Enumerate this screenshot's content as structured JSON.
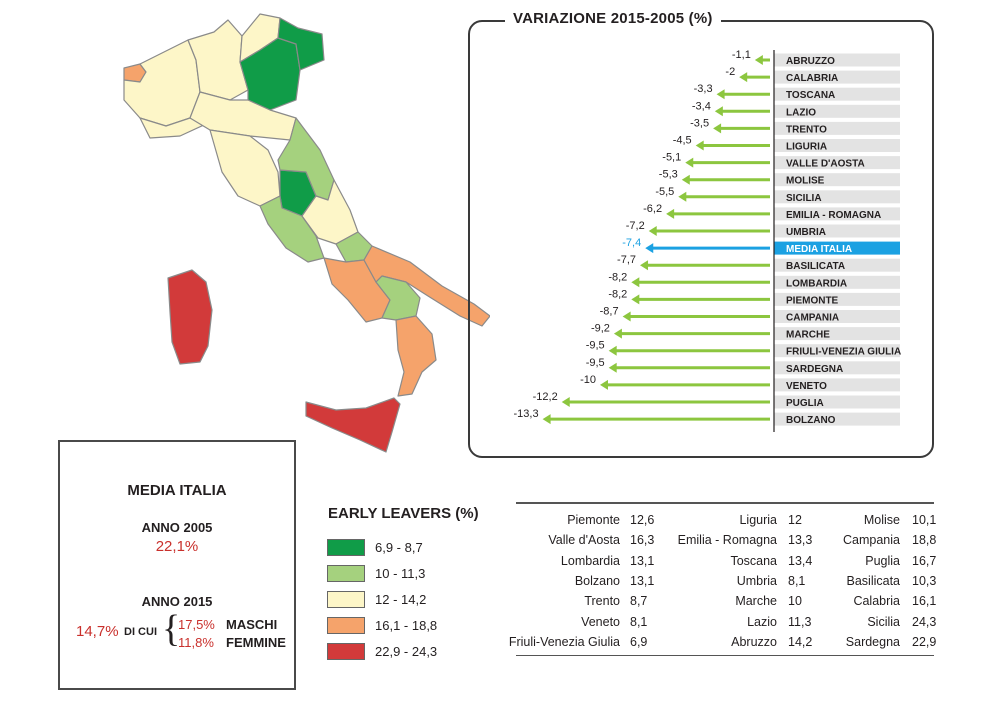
{
  "variation_panel": {
    "title": "VARIAZIONE 2015-2005 (%)"
  },
  "chart_data": [
    {
      "type": "bar",
      "orientation": "horizontal",
      "title": "VARIAZIONE 2015-2005 (%)",
      "categories": [
        "ABRUZZO",
        "CALABRIA",
        "TOSCANA",
        "LAZIO",
        "TRENTO",
        "LIGURIA",
        "VALLE D'AOSTA",
        "MOLISE",
        "SICILIA",
        "EMILIA - ROMAGNA",
        "UMBRIA",
        "MEDIA ITALIA",
        "BASILICATA",
        "LOMBARDIA",
        "PIEMONTE",
        "CAMPANIA",
        "MARCHE",
        "FRIULI-VENEZIA GIULIA",
        "SARDEGNA",
        "VENETO",
        "PUGLIA",
        "BOLZANO"
      ],
      "values": [
        -1.1,
        -2,
        -3.3,
        -3.4,
        -3.5,
        -4.5,
        -5.1,
        -5.3,
        -5.5,
        -6.2,
        -7.2,
        -7.4,
        -7.7,
        -8.2,
        -8.2,
        -8.7,
        -9.2,
        -9.5,
        -9.5,
        -10,
        -12.2,
        -13.3
      ],
      "value_labels": [
        "-1,1",
        "-2",
        "-3,3",
        "-3,4",
        "-3,5",
        "-4,5",
        "-5,1",
        "-5,3",
        "-5,5",
        "-6,2",
        "-7,2",
        "-7,4",
        "-7,7",
        "-8,2",
        "-8,2",
        "-8,7",
        "-9,2",
        "-9,5",
        "-9,5",
        "-10",
        "-12,2",
        "-13,3"
      ],
      "highlight": "MEDIA ITALIA",
      "colors": {
        "bar": "#8cc63f",
        "highlight": "#1ba1e2",
        "label_bg": "#e3e3e3"
      }
    },
    {
      "type": "table",
      "title": "",
      "columns": [
        [
          [
            "Piemonte",
            "12,6"
          ],
          [
            "Valle d'Aosta",
            "16,3"
          ],
          [
            "Lombardia",
            "13,1"
          ],
          [
            "Bolzano",
            "13,1"
          ],
          [
            "Trento",
            "8,7"
          ],
          [
            "Veneto",
            "8,1"
          ],
          [
            "Friuli-Venezia Giulia",
            "6,9"
          ]
        ],
        [
          [
            "Liguria",
            "12"
          ],
          [
            "Emilia - Romagna",
            "13,3"
          ],
          [
            "Toscana",
            "13,4"
          ],
          [
            "Umbria",
            "8,1"
          ],
          [
            "Marche",
            "10"
          ],
          [
            "Lazio",
            "11,3"
          ],
          [
            "Abruzzo",
            "14,2"
          ]
        ],
        [
          [
            "Molise",
            "10,1"
          ],
          [
            "Campania",
            "18,8"
          ],
          [
            "Puglia",
            "16,7"
          ],
          [
            "Basilicata",
            "10,3"
          ],
          [
            "Calabria",
            "16,1"
          ],
          [
            "Sicilia",
            "24,3"
          ],
          [
            "Sardegna",
            "22,9"
          ]
        ]
      ]
    }
  ],
  "media_italia": {
    "title": "MEDIA ITALIA",
    "anno_2005_label": "ANNO 2005",
    "anno_2005_value": "22,1%",
    "anno_2015_label": "ANNO 2015",
    "anno_2015_value": "14,7%",
    "di_cui": "DI CUI",
    "maschi_value": "17,5%",
    "maschi_label": "MASCHI",
    "femmine_value": "11,8%",
    "femmine_label": "FEMMINE"
  },
  "legend": {
    "title": "EARLY LEAVERS (%)",
    "items": [
      {
        "label": "6,9 - 8,7",
        "color": "#109c48"
      },
      {
        "label": "10 - 11,3",
        "color": "#a5d17e"
      },
      {
        "label": "12 - 14,2",
        "color": "#fdf6c8"
      },
      {
        "label": "16,1 - 18,8",
        "color": "#f5a36b"
      },
      {
        "label": "22,9 - 24,3",
        "color": "#d23a3a"
      }
    ]
  }
}
